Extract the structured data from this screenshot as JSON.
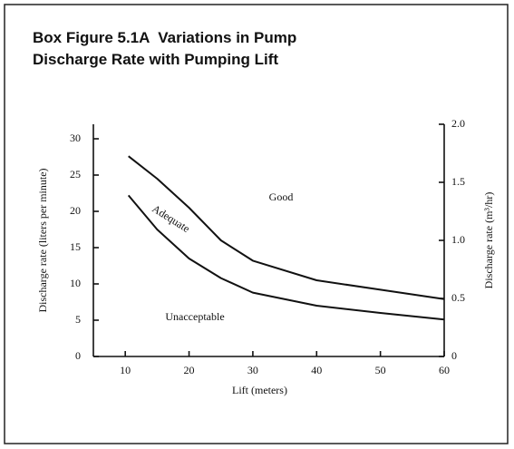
{
  "chart_data": {
    "type": "line",
    "title": "Box Figure 5.1A  Variations in Pump Discharge Rate with Pumping Lift",
    "x_label": "Lift (meters)",
    "y_label": "Discharge rate (liters per minute)",
    "y2_label": "Discharge rate (m³/hr)",
    "x": [
      10.5,
      15,
      20,
      25,
      30,
      40,
      50,
      60
    ],
    "series": [
      {
        "color": "#111111",
        "values": [
          27.6,
          24.5,
          20.5,
          16,
          13.2,
          10.5,
          9.2,
          7.9
        ]
      },
      {
        "color": "#111111",
        "values": [
          22.2,
          17.5,
          13.5,
          10.8,
          8.8,
          7,
          6,
          5.1
        ]
      }
    ],
    "xlim": [
      5,
      60
    ],
    "xticks": [
      10,
      20,
      30,
      40,
      50,
      60
    ],
    "ylim": [
      0,
      32
    ],
    "yticks": [
      0,
      5,
      10,
      15,
      20,
      25,
      30
    ],
    "y2lim": [
      0,
      2
    ],
    "y2ticks": [
      0,
      0.5,
      {
        "value": 1,
        "label": "1.0"
      },
      1.5,
      {
        "value": 2,
        "label": "2.0"
      }
    ],
    "annotations": [
      {
        "text": "Good"
      },
      {
        "text": "Adequate"
      },
      {
        "text": "Unacceptable"
      }
    ]
  }
}
